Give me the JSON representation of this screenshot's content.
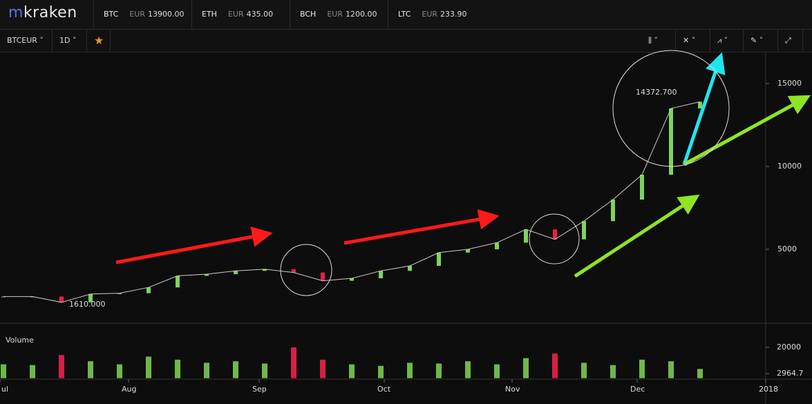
{
  "header": {
    "logo": "kraken",
    "tickers": [
      {
        "symbol": "BTC",
        "currency": "EUR",
        "price": "13900.00"
      },
      {
        "symbol": "ETH",
        "currency": "EUR",
        "price": "435.00"
      },
      {
        "symbol": "BCH",
        "currency": "EUR",
        "price": "1200.00"
      },
      {
        "symbol": "LTC",
        "currency": "EUR",
        "price": "233.90"
      }
    ]
  },
  "toolbar": {
    "pair": "BTCEUR",
    "interval": "1D"
  },
  "chart": {
    "type": "candlestick",
    "x_labels": [
      "ul",
      "Aug",
      "Sep",
      "Oct",
      "Nov",
      "Dec",
      "2018"
    ],
    "yticks": [
      5000,
      10000,
      15000
    ],
    "annotations": {
      "high": "14372.700",
      "low": "1610.000"
    },
    "closes": [
      2150,
      2150,
      1800,
      2300,
      2350,
      2700,
      3400,
      3500,
      3700,
      3800,
      3600,
      3100,
      3250,
      3700,
      4000,
      4800,
      5000,
      5400,
      6200,
      5600,
      6700,
      8000,
      9500,
      13500,
      13900
    ],
    "volume": {
      "title": "Volume",
      "yticks": [
        {
          "value": 20000,
          "label": "20000"
        },
        {
          "value": 2964.7,
          "label": "2964.7"
        }
      ],
      "values": [
        9000,
        8500,
        15000,
        11000,
        9000,
        14000,
        12000,
        10000,
        11000,
        9500,
        20000,
        12000,
        9000,
        8000,
        10000,
        9500,
        11000,
        9000,
        13000,
        16000,
        10000,
        8500,
        12000,
        11000,
        6000
      ]
    }
  }
}
